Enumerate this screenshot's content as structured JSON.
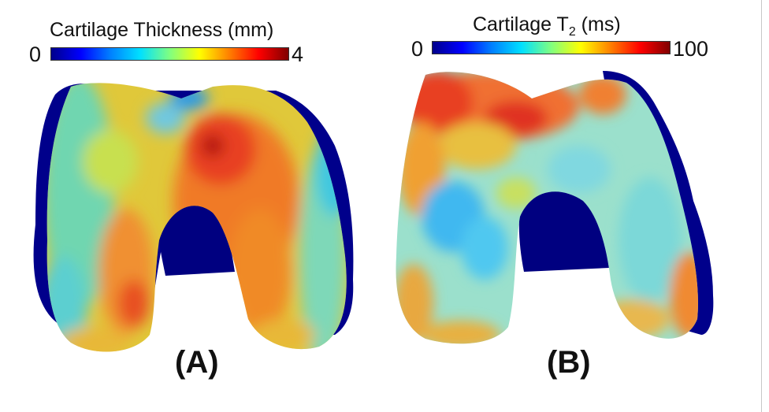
{
  "panel_a": {
    "colorbar_title": "Cartilage Thickness (mm)",
    "min_label": "0",
    "max_label": "4",
    "panel_label": "(A)"
  },
  "panel_b": {
    "colorbar_title_main": "Cartilage T",
    "colorbar_title_sub": "2",
    "colorbar_title_unit": " (ms)",
    "min_label": "0",
    "max_label": "100",
    "panel_label": "(B)"
  },
  "colors": {
    "jet": [
      "#00008b",
      "#0000ff",
      "#0080ff",
      "#00e0ff",
      "#80ff80",
      "#ffff00",
      "#ff8000",
      "#ff0000",
      "#800000"
    ],
    "background_dark": "#000080",
    "knee_a_base": "#e8c030",
    "knee_b_base": "#9ee0c8"
  }
}
